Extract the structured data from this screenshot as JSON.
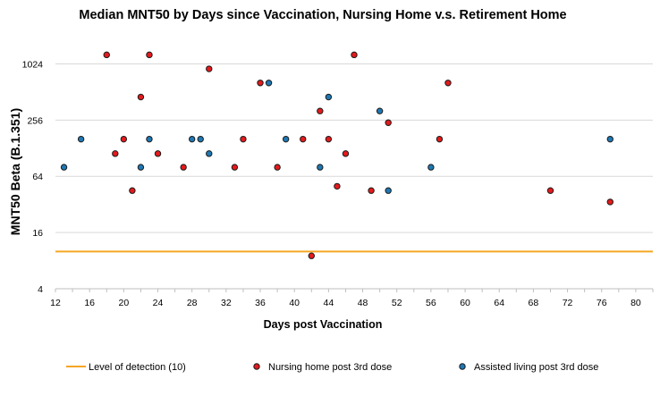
{
  "chart_data": {
    "type": "scatter",
    "title": "Median MNT50 by Days since Vaccination, Nursing Home v.s. Retirement Home",
    "xlabel": "Days post Vaccination",
    "ylabel": "MNT50 Beta (B.1.351)",
    "xlim": [
      12,
      82
    ],
    "ylim": [
      4,
      2048
    ],
    "y_scale": "log2",
    "x_ticks": [
      12,
      16,
      20,
      24,
      28,
      32,
      36,
      40,
      44,
      48,
      52,
      56,
      60,
      64,
      68,
      72,
      76,
      80
    ],
    "y_ticks": [
      4,
      16,
      64,
      256,
      1024
    ],
    "grid": "horizontal",
    "legend_position": "bottom",
    "colors": {
      "nursing_home": "#e41a1c",
      "assisted_living": "#1f78b4",
      "lod": "#f5a623",
      "marker_edge": "#1a1a1a",
      "grid": "#d9d9d9"
    },
    "reference_lines": [
      {
        "name": "Level of detection (10)",
        "y": 10
      }
    ],
    "series": [
      {
        "name": "Nursing home post 3rd dose",
        "points": [
          {
            "x": 18,
            "y": 1280
          },
          {
            "x": 19,
            "y": 112
          },
          {
            "x": 20,
            "y": 160
          },
          {
            "x": 21,
            "y": 45
          },
          {
            "x": 22,
            "y": 452
          },
          {
            "x": 23,
            "y": 1280
          },
          {
            "x": 24,
            "y": 112
          },
          {
            "x": 27,
            "y": 80
          },
          {
            "x": 30,
            "y": 905
          },
          {
            "x": 33,
            "y": 80
          },
          {
            "x": 34,
            "y": 160
          },
          {
            "x": 36,
            "y": 640
          },
          {
            "x": 38,
            "y": 80
          },
          {
            "x": 41,
            "y": 160
          },
          {
            "x": 42,
            "y": 9
          },
          {
            "x": 43,
            "y": 320
          },
          {
            "x": 44,
            "y": 160
          },
          {
            "x": 45,
            "y": 50
          },
          {
            "x": 46,
            "y": 112
          },
          {
            "x": 47,
            "y": 1280
          },
          {
            "x": 49,
            "y": 45
          },
          {
            "x": 51,
            "y": 240
          },
          {
            "x": 57,
            "y": 160
          },
          {
            "x": 58,
            "y": 640
          },
          {
            "x": 70,
            "y": 45
          },
          {
            "x": 77,
            "y": 34
          }
        ]
      },
      {
        "name": "Assisted living post 3rd dose",
        "points": [
          {
            "x": 13,
            "y": 80
          },
          {
            "x": 15,
            "y": 160
          },
          {
            "x": 22,
            "y": 80
          },
          {
            "x": 23,
            "y": 160
          },
          {
            "x": 28,
            "y": 160
          },
          {
            "x": 29,
            "y": 160
          },
          {
            "x": 30,
            "y": 112
          },
          {
            "x": 37,
            "y": 640
          },
          {
            "x": 39,
            "y": 160
          },
          {
            "x": 43,
            "y": 80
          },
          {
            "x": 44,
            "y": 452
          },
          {
            "x": 50,
            "y": 320
          },
          {
            "x": 51,
            "y": 45
          },
          {
            "x": 56,
            "y": 80
          },
          {
            "x": 77,
            "y": 160
          }
        ]
      }
    ]
  }
}
